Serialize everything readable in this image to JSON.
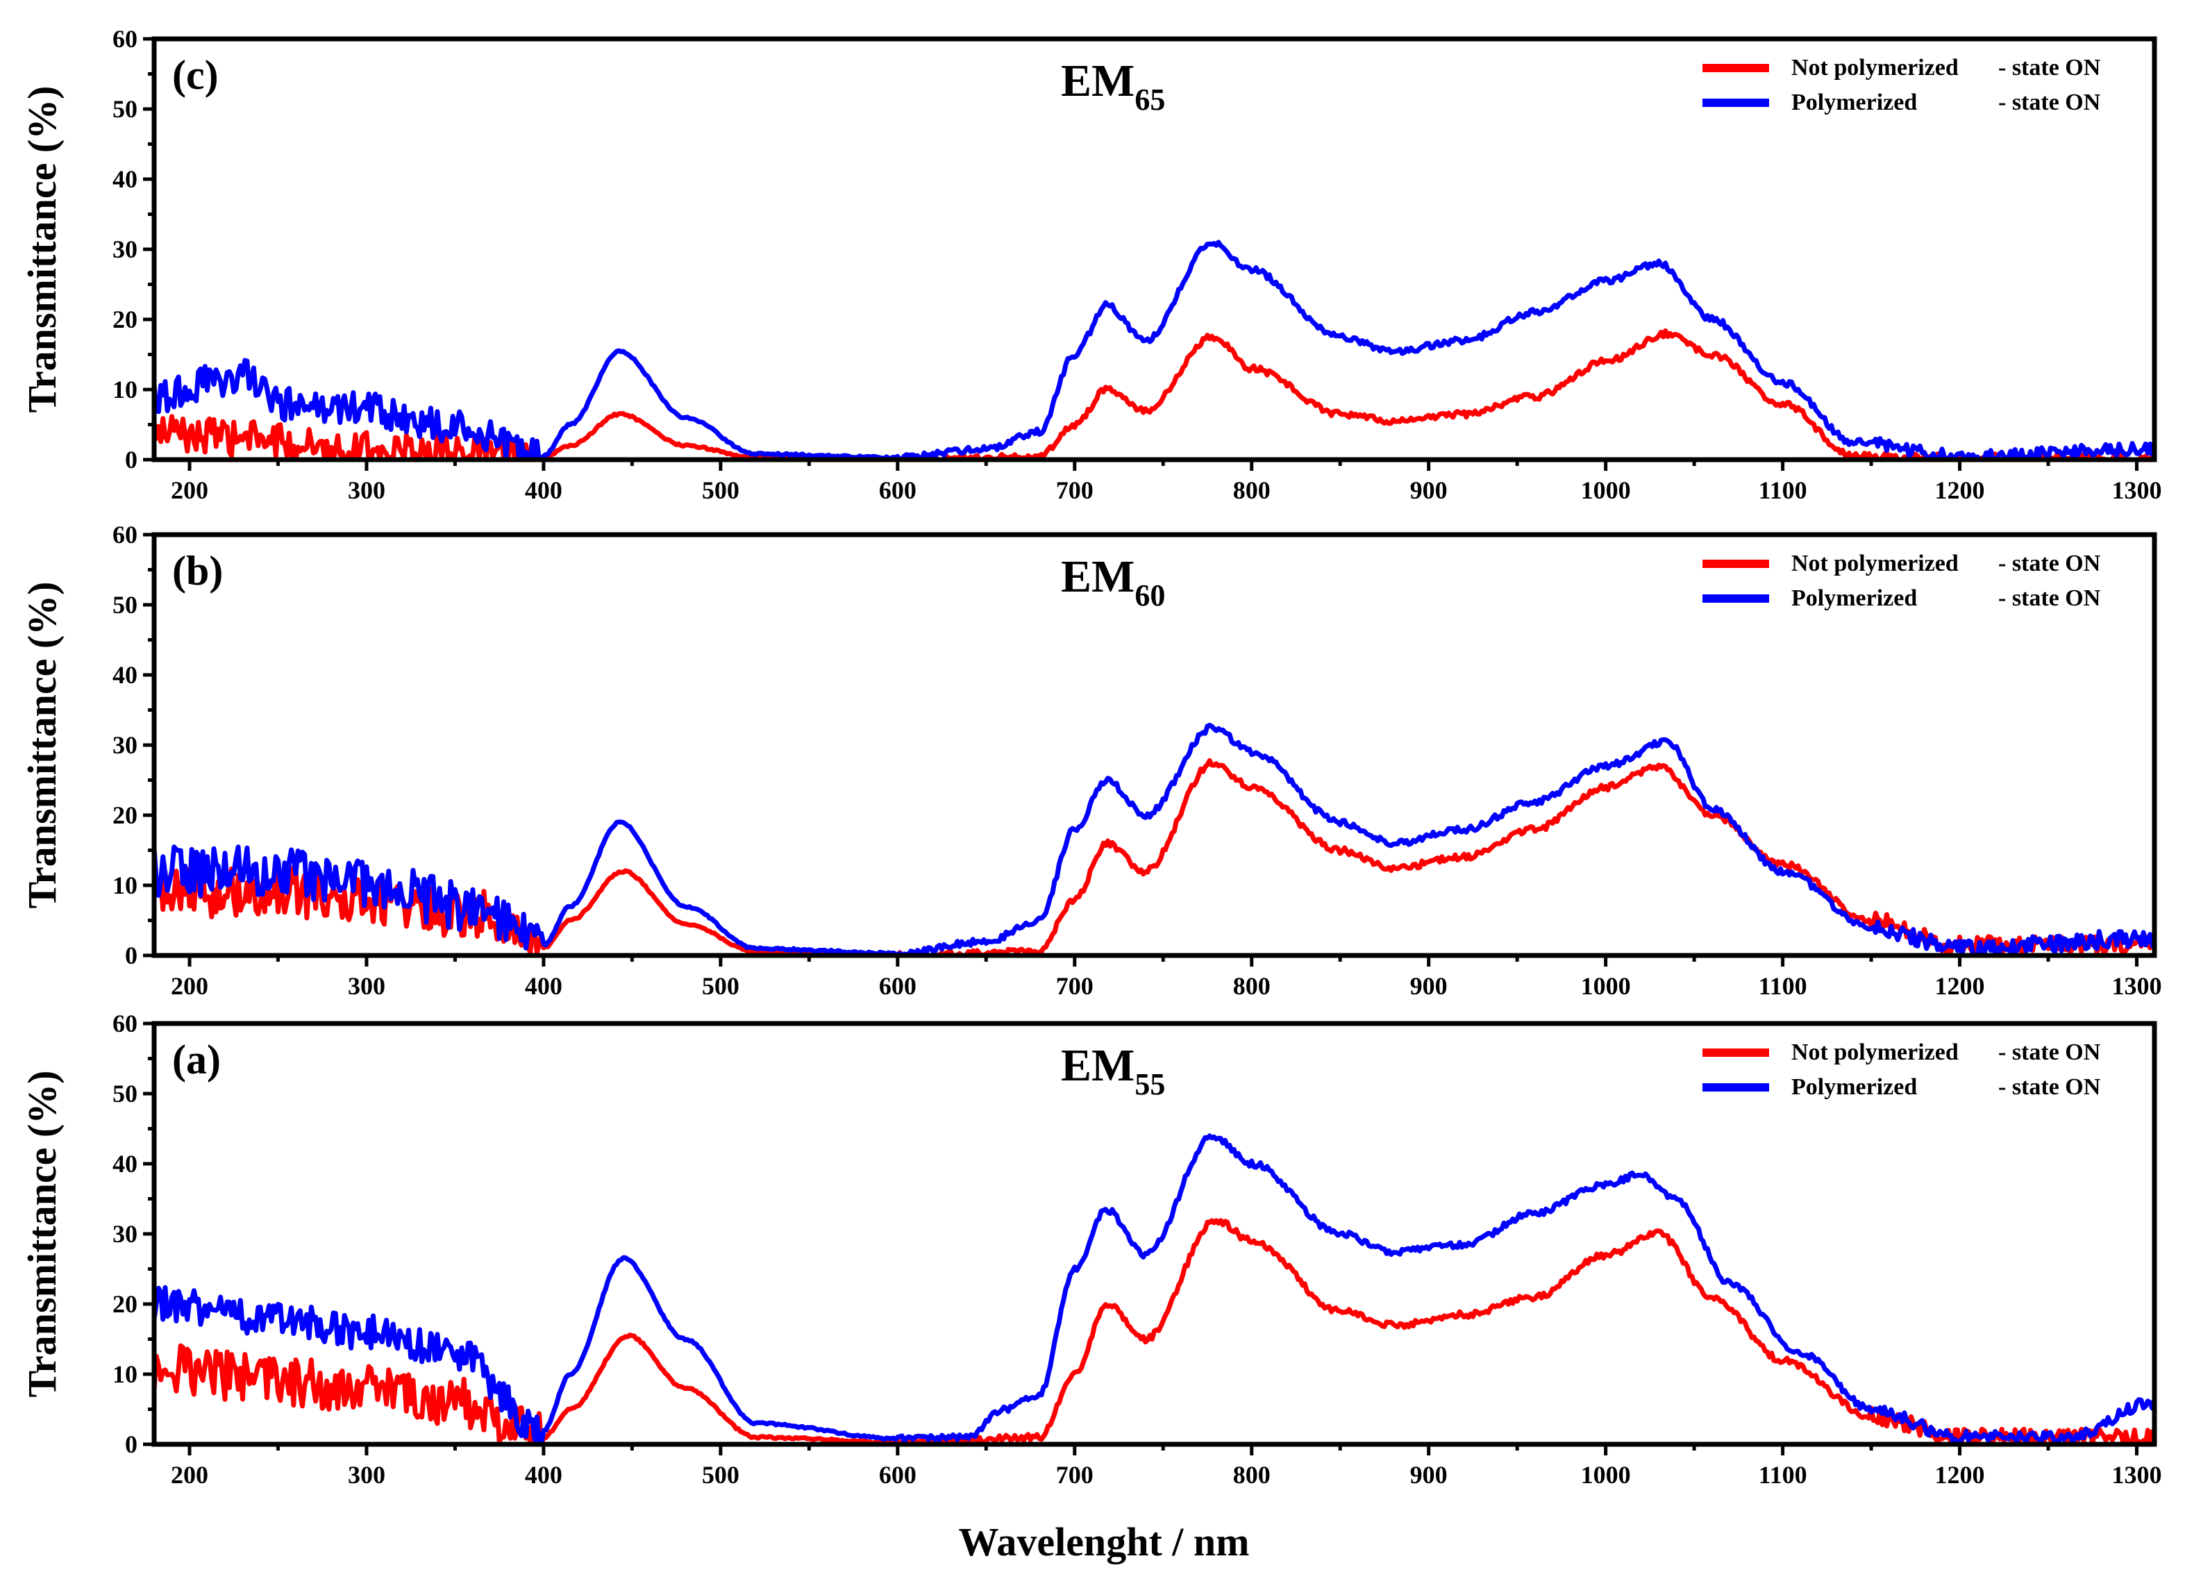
{
  "chart_data": {
    "type": "line",
    "xlabel": "Wavelenght / nm",
    "ylabel": "Transmittance (%)",
    "xlim": [
      180,
      1310
    ],
    "ylim": [
      0,
      60
    ],
    "xticks": [
      "200",
      "300",
      "400",
      "500",
      "600",
      "700",
      "800",
      "900",
      "1000",
      "1100",
      "1200",
      "1300"
    ],
    "yticks": [
      "0",
      "10",
      "20",
      "30",
      "40",
      "50",
      "60"
    ],
    "colors": {
      "not_polymerized": "#ff0000",
      "polymerized": "#0000ff"
    },
    "panels": [
      {
        "id": "c",
        "label": "(c)",
        "title_main": "EM",
        "title_sub": "65",
        "legend": [
          {
            "series": "not_polymerized",
            "name": "Not polymerized",
            "suffix": "- state ON"
          },
          {
            "series": "polymerized",
            "name": "Polymerized",
            "suffix": "- state ON"
          }
        ],
        "series": [
          {
            "key": "not_polymerized",
            "name": "Not polymerized - state ON",
            "noise": 2.5,
            "points": [
              [
                180,
                4
              ],
              [
                230,
                3
              ],
              [
                300,
                1.5
              ],
              [
                360,
                1
              ],
              [
                400,
                0.3
              ],
              [
                415,
                2
              ],
              [
                443,
                6.5
              ],
              [
                480,
                2
              ],
              [
                520,
                0.3
              ],
              [
                600,
                0
              ],
              [
                680,
                0.4
              ],
              [
                700,
                5
              ],
              [
                718,
                10
              ],
              [
                740,
                7
              ],
              [
                778,
                17.5
              ],
              [
                800,
                13
              ],
              [
                850,
                6.5
              ],
              [
                880,
                5.5
              ],
              [
                920,
                6.5
              ],
              [
                960,
                9
              ],
              [
                1000,
                14
              ],
              [
                1035,
                18
              ],
              [
                1060,
                15
              ],
              [
                1100,
                8
              ],
              [
                1140,
                0.5
              ],
              [
                1200,
                0
              ],
              [
                1310,
                0
              ]
            ]
          },
          {
            "key": "polymerized",
            "name": "Polymerized - state ON",
            "noise": 2.5,
            "points": [
              [
                180,
                9
              ],
              [
                230,
                12
              ],
              [
                250,
                8
              ],
              [
                300,
                7
              ],
              [
                350,
                4.5
              ],
              [
                400,
                0.5
              ],
              [
                415,
                5
              ],
              [
                443,
                15.5
              ],
              [
                480,
                6
              ],
              [
                520,
                0.8
              ],
              [
                600,
                0.3
              ],
              [
                650,
                1.5
              ],
              [
                680,
                4
              ],
              [
                700,
                15
              ],
              [
                718,
                22
              ],
              [
                740,
                17
              ],
              [
                778,
                31
              ],
              [
                800,
                27
              ],
              [
                850,
                17.5
              ],
              [
                880,
                15.5
              ],
              [
                920,
                17
              ],
              [
                960,
                21
              ],
              [
                1000,
                25.5
              ],
              [
                1030,
                28
              ],
              [
                1060,
                20
              ],
              [
                1100,
                11
              ],
              [
                1140,
                2.5
              ],
              [
                1200,
                0.5
              ],
              [
                1310,
                1.5
              ]
            ]
          }
        ]
      },
      {
        "id": "b",
        "label": "(b)",
        "title_main": "EM",
        "title_sub": "60",
        "legend": [
          {
            "series": "not_polymerized",
            "name": "Not polymerized",
            "suffix": "- state ON"
          },
          {
            "series": "polymerized",
            "name": "Polymerized",
            "suffix": "- state ON"
          }
        ],
        "series": [
          {
            "key": "not_polymerized",
            "name": "Not polymerized - state ON",
            "noise": 3.5,
            "points": [
              [
                180,
                9
              ],
              [
                250,
                9
              ],
              [
                300,
                8
              ],
              [
                360,
                6
              ],
              [
                400,
                1
              ],
              [
                415,
                5
              ],
              [
                445,
                12
              ],
              [
                480,
                4.5
              ],
              [
                520,
                0.5
              ],
              [
                600,
                0
              ],
              [
                680,
                0.5
              ],
              [
                700,
                8
              ],
              [
                718,
                16
              ],
              [
                740,
                12
              ],
              [
                778,
                27.5
              ],
              [
                800,
                24
              ],
              [
                850,
                15
              ],
              [
                880,
                12.5
              ],
              [
                920,
                14
              ],
              [
                960,
                18
              ],
              [
                1000,
                24
              ],
              [
                1030,
                27
              ],
              [
                1060,
                20
              ],
              [
                1100,
                13
              ],
              [
                1150,
                5
              ],
              [
                1200,
                1.5
              ],
              [
                1310,
                1.5
              ]
            ]
          },
          {
            "key": "polymerized",
            "name": "Polymerized - state ON",
            "noise": 3.5,
            "points": [
              [
                180,
                12
              ],
              [
                250,
                12
              ],
              [
                300,
                10
              ],
              [
                360,
                7
              ],
              [
                400,
                1.5
              ],
              [
                415,
                7
              ],
              [
                443,
                19
              ],
              [
                480,
                7
              ],
              [
                520,
                1
              ],
              [
                600,
                0.3
              ],
              [
                650,
                2
              ],
              [
                680,
                5
              ],
              [
                700,
                18
              ],
              [
                718,
                25
              ],
              [
                740,
                20
              ],
              [
                778,
                32.5
              ],
              [
                800,
                29
              ],
              [
                850,
                19
              ],
              [
                880,
                16
              ],
              [
                920,
                18
              ],
              [
                960,
                22
              ],
              [
                1000,
                27
              ],
              [
                1035,
                30.5
              ],
              [
                1060,
                21
              ],
              [
                1100,
                12
              ],
              [
                1150,
                4
              ],
              [
                1200,
                1
              ],
              [
                1310,
                2.5
              ]
            ]
          }
        ]
      },
      {
        "id": "a",
        "label": "(a)",
        "title_main": "EM",
        "title_sub": "55",
        "legend": [
          {
            "series": "not_polymerized",
            "name": "Not polymerized",
            "suffix": "- state ON"
          },
          {
            "series": "polymerized",
            "name": "Polymerized",
            "suffix": "- state ON"
          }
        ],
        "series": [
          {
            "key": "not_polymerized",
            "name": "Not polymerized - state ON",
            "noise": 3.5,
            "points": [
              [
                180,
                11
              ],
              [
                250,
                9
              ],
              [
                300,
                8
              ],
              [
                350,
                6
              ],
              [
                400,
                1
              ],
              [
                415,
                5
              ],
              [
                448,
                15.5
              ],
              [
                480,
                8
              ],
              [
                520,
                1
              ],
              [
                600,
                0.3
              ],
              [
                680,
                1
              ],
              [
                700,
                10
              ],
              [
                718,
                20
              ],
              [
                740,
                15
              ],
              [
                780,
                32
              ],
              [
                800,
                29
              ],
              [
                850,
                19
              ],
              [
                880,
                17
              ],
              [
                920,
                18.5
              ],
              [
                960,
                21
              ],
              [
                1000,
                27
              ],
              [
                1030,
                30
              ],
              [
                1060,
                21
              ],
              [
                1100,
                12
              ],
              [
                1150,
                4
              ],
              [
                1200,
                1
              ],
              [
                1310,
                1
              ]
            ]
          },
          {
            "key": "polymerized",
            "name": "Polymerized - state ON",
            "noise": 2.5,
            "points": [
              [
                180,
                20
              ],
              [
                250,
                18
              ],
              [
                300,
                16
              ],
              [
                350,
                13
              ],
              [
                400,
                2
              ],
              [
                415,
                10
              ],
              [
                445,
                26.5
              ],
              [
                480,
                15
              ],
              [
                520,
                3
              ],
              [
                600,
                0.8
              ],
              [
                640,
                1
              ],
              [
                660,
                5
              ],
              [
                680,
                7
              ],
              [
                700,
                25
              ],
              [
                718,
                33.5
              ],
              [
                740,
                27
              ],
              [
                778,
                44
              ],
              [
                800,
                40
              ],
              [
                850,
                30
              ],
              [
                880,
                27.5
              ],
              [
                920,
                28.5
              ],
              [
                960,
                33
              ],
              [
                1000,
                37
              ],
              [
                1020,
                38.5
              ],
              [
                1040,
                35
              ],
              [
                1070,
                23
              ],
              [
                1110,
                13
              ],
              [
                1150,
                5
              ],
              [
                1200,
                1
              ],
              [
                1260,
                1
              ],
              [
                1310,
                6
              ]
            ]
          }
        ]
      }
    ]
  }
}
